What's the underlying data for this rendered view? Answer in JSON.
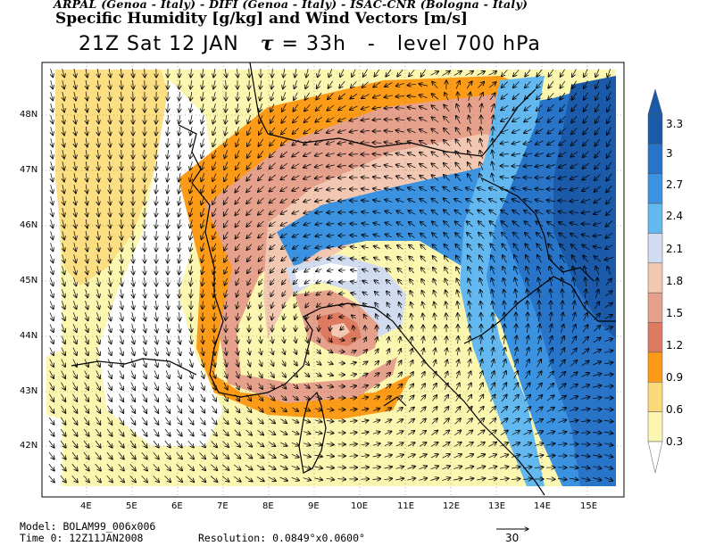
{
  "header": {
    "institutions": "ARPAL (Genoa - Italy)  -  DIFI (Genoa - Italy)  -  ISAC-CNR (Bologna - Italy)",
    "field": "Specific Humidity [g/kg] and Wind Vectors [m/s]",
    "time": "21Z Sat 12 JAN",
    "tau_symbol": "τ",
    "tau": "= 33h",
    "separator": "-",
    "level": "level 700 hPa"
  },
  "axes": {
    "lat_labels": [
      "48N",
      "47N",
      "46N",
      "45N",
      "44N",
      "43N",
      "42N"
    ],
    "lon_labels": [
      "4E",
      "5E",
      "6E",
      "7E",
      "8E",
      "9E",
      "10E",
      "11E",
      "12E",
      "13E",
      "14E",
      "15E"
    ]
  },
  "colorbar": {
    "labels": [
      "3.3",
      "3",
      "2.7",
      "2.4",
      "2.1",
      "1.8",
      "1.5",
      "1.2",
      "0.9",
      "0.6",
      "0.3"
    ],
    "colors": [
      "#1a5aa8",
      "#2874c8",
      "#3a92e0",
      "#63b8ef",
      "#d2dcf0",
      "#f3c8b2",
      "#e6a18c",
      "#dd7a5f",
      "#fb9b17",
      "#fbd97b",
      "#fbf6b0"
    ]
  },
  "footer": {
    "model": "Model: BOLAM99_006x006",
    "time0": "Time 0: 12Z11JAN2008",
    "resolution": "Resolution: 0.0849°x0.0600°",
    "ref_vector": "30"
  },
  "colors": {
    "background": "#ffffff",
    "land_fill": "#f5f5a2",
    "coastline": "#000000"
  }
}
